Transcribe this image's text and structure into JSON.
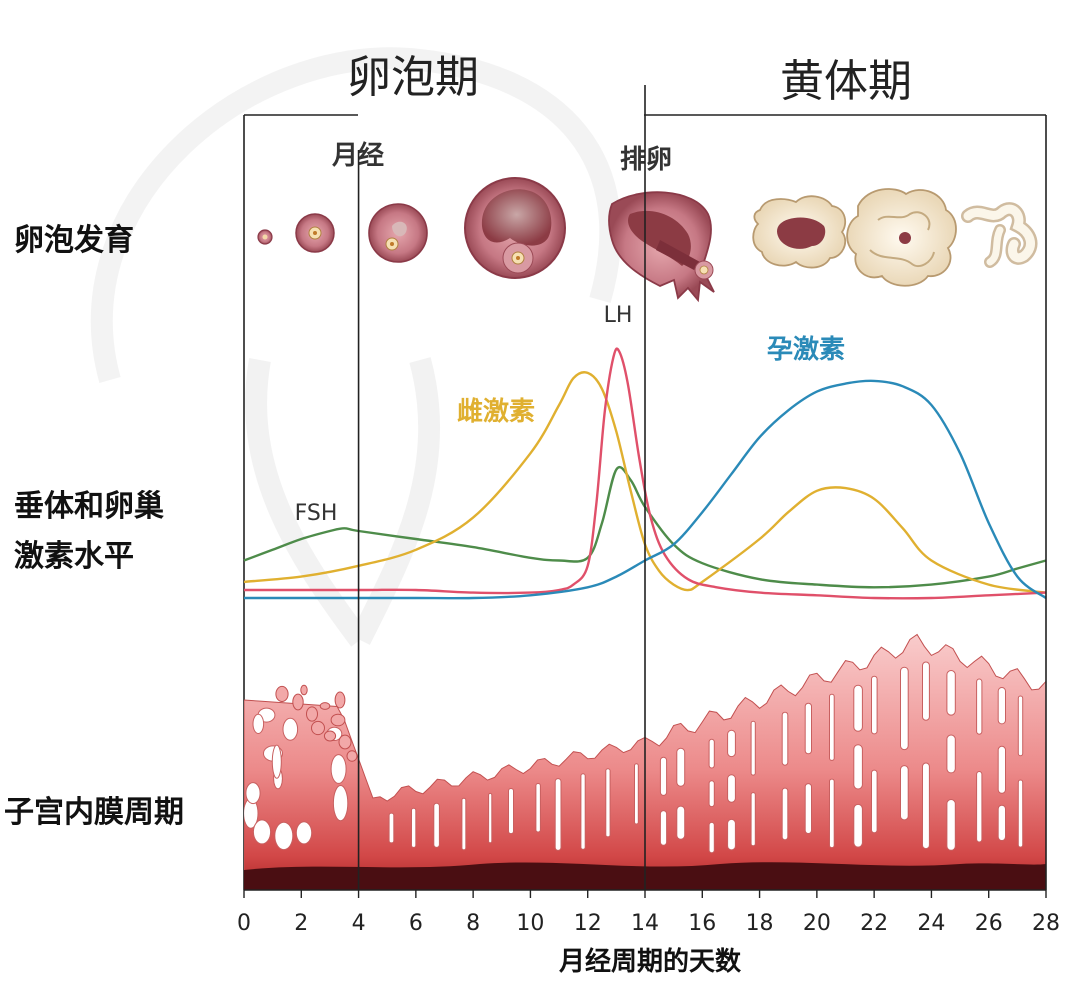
{
  "phases": {
    "follicular": "卵泡期",
    "luteal": "黄体期"
  },
  "events": {
    "menses": "月经",
    "ovulation": "排卵"
  },
  "row_labels": {
    "follicle": "卵泡发育",
    "hormone_line1": "垂体和卵巢",
    "hormone_line2": "激素水平",
    "endometrium": "子宫内膜周期"
  },
  "colors": {
    "fsh": "#4e8c4a",
    "estrogen": "#e0b030",
    "lh": "#e0506a",
    "progesterone": "#2a8ab8",
    "endometrium_light": "#f7c2c2",
    "endometrium_mid": "#e46e6e",
    "endometrium_dark": "#5a1010",
    "follicle": "#b86470"
  },
  "chart_data": {
    "type": "line",
    "xlabel": "月经周期的天数",
    "ylabel": "",
    "xlim": [
      0,
      28
    ],
    "xticks": [
      0,
      2,
      4,
      6,
      8,
      10,
      12,
      14,
      16,
      18,
      20,
      22,
      24,
      26,
      28
    ],
    "ylim": [
      0,
      100
    ],
    "grid": false,
    "phase_boundaries": [
      4,
      14
    ],
    "series": [
      {
        "name": "FSH",
        "key": "fsh",
        "x": [
          0,
          1,
          2,
          3,
          3.5,
          4,
          6,
          8,
          10,
          11,
          12,
          12.5,
          13,
          13.5,
          14,
          15,
          16,
          18,
          20,
          22,
          24,
          26,
          27,
          28
        ],
        "y": [
          14,
          18,
          22,
          25,
          26,
          25,
          22,
          19,
          15,
          14,
          15,
          28,
          48,
          44,
          34,
          20,
          13,
          7,
          5,
          4,
          5,
          8,
          11,
          14
        ]
      },
      {
        "name": "雌激素",
        "key": "estrogen",
        "x": [
          0,
          2,
          4,
          6,
          8,
          10,
          11,
          11.5,
          12,
          12.5,
          13,
          13.5,
          14,
          14.5,
          15,
          15.5,
          16,
          18,
          19,
          20,
          21,
          22,
          23,
          24,
          26,
          28
        ],
        "y": [
          6,
          8,
          12,
          18,
          30,
          54,
          72,
          82,
          84,
          78,
          62,
          40,
          20,
          10,
          5,
          3,
          6,
          22,
          32,
          40,
          41,
          37,
          26,
          14,
          5,
          2
        ]
      },
      {
        "name": "LH",
        "key": "lh",
        "x": [
          0,
          2,
          4,
          6,
          8,
          10,
          11,
          11.5,
          12,
          12.3,
          12.6,
          12.9,
          13.1,
          13.4,
          13.8,
          14.2,
          14.7,
          15.5,
          16.5,
          18,
          20,
          22,
          24,
          26,
          28
        ],
        "y": [
          3,
          3,
          3,
          3,
          2,
          2,
          3,
          5,
          12,
          35,
          70,
          90,
          92,
          80,
          52,
          30,
          16,
          7,
          4,
          2,
          1,
          0,
          0,
          1,
          2
        ]
      },
      {
        "name": "孕激素",
        "key": "progesterone",
        "x": [
          0,
          2,
          4,
          6,
          8,
          10,
          12,
          13,
          14,
          15,
          16,
          17,
          18,
          19,
          20,
          21,
          22,
          23,
          24,
          25,
          26,
          27,
          28
        ],
        "y": [
          0,
          0,
          0,
          0,
          0,
          1,
          4,
          8,
          14,
          20,
          32,
          46,
          60,
          70,
          77,
          80,
          81,
          79,
          72,
          54,
          28,
          8,
          0
        ]
      }
    ]
  }
}
